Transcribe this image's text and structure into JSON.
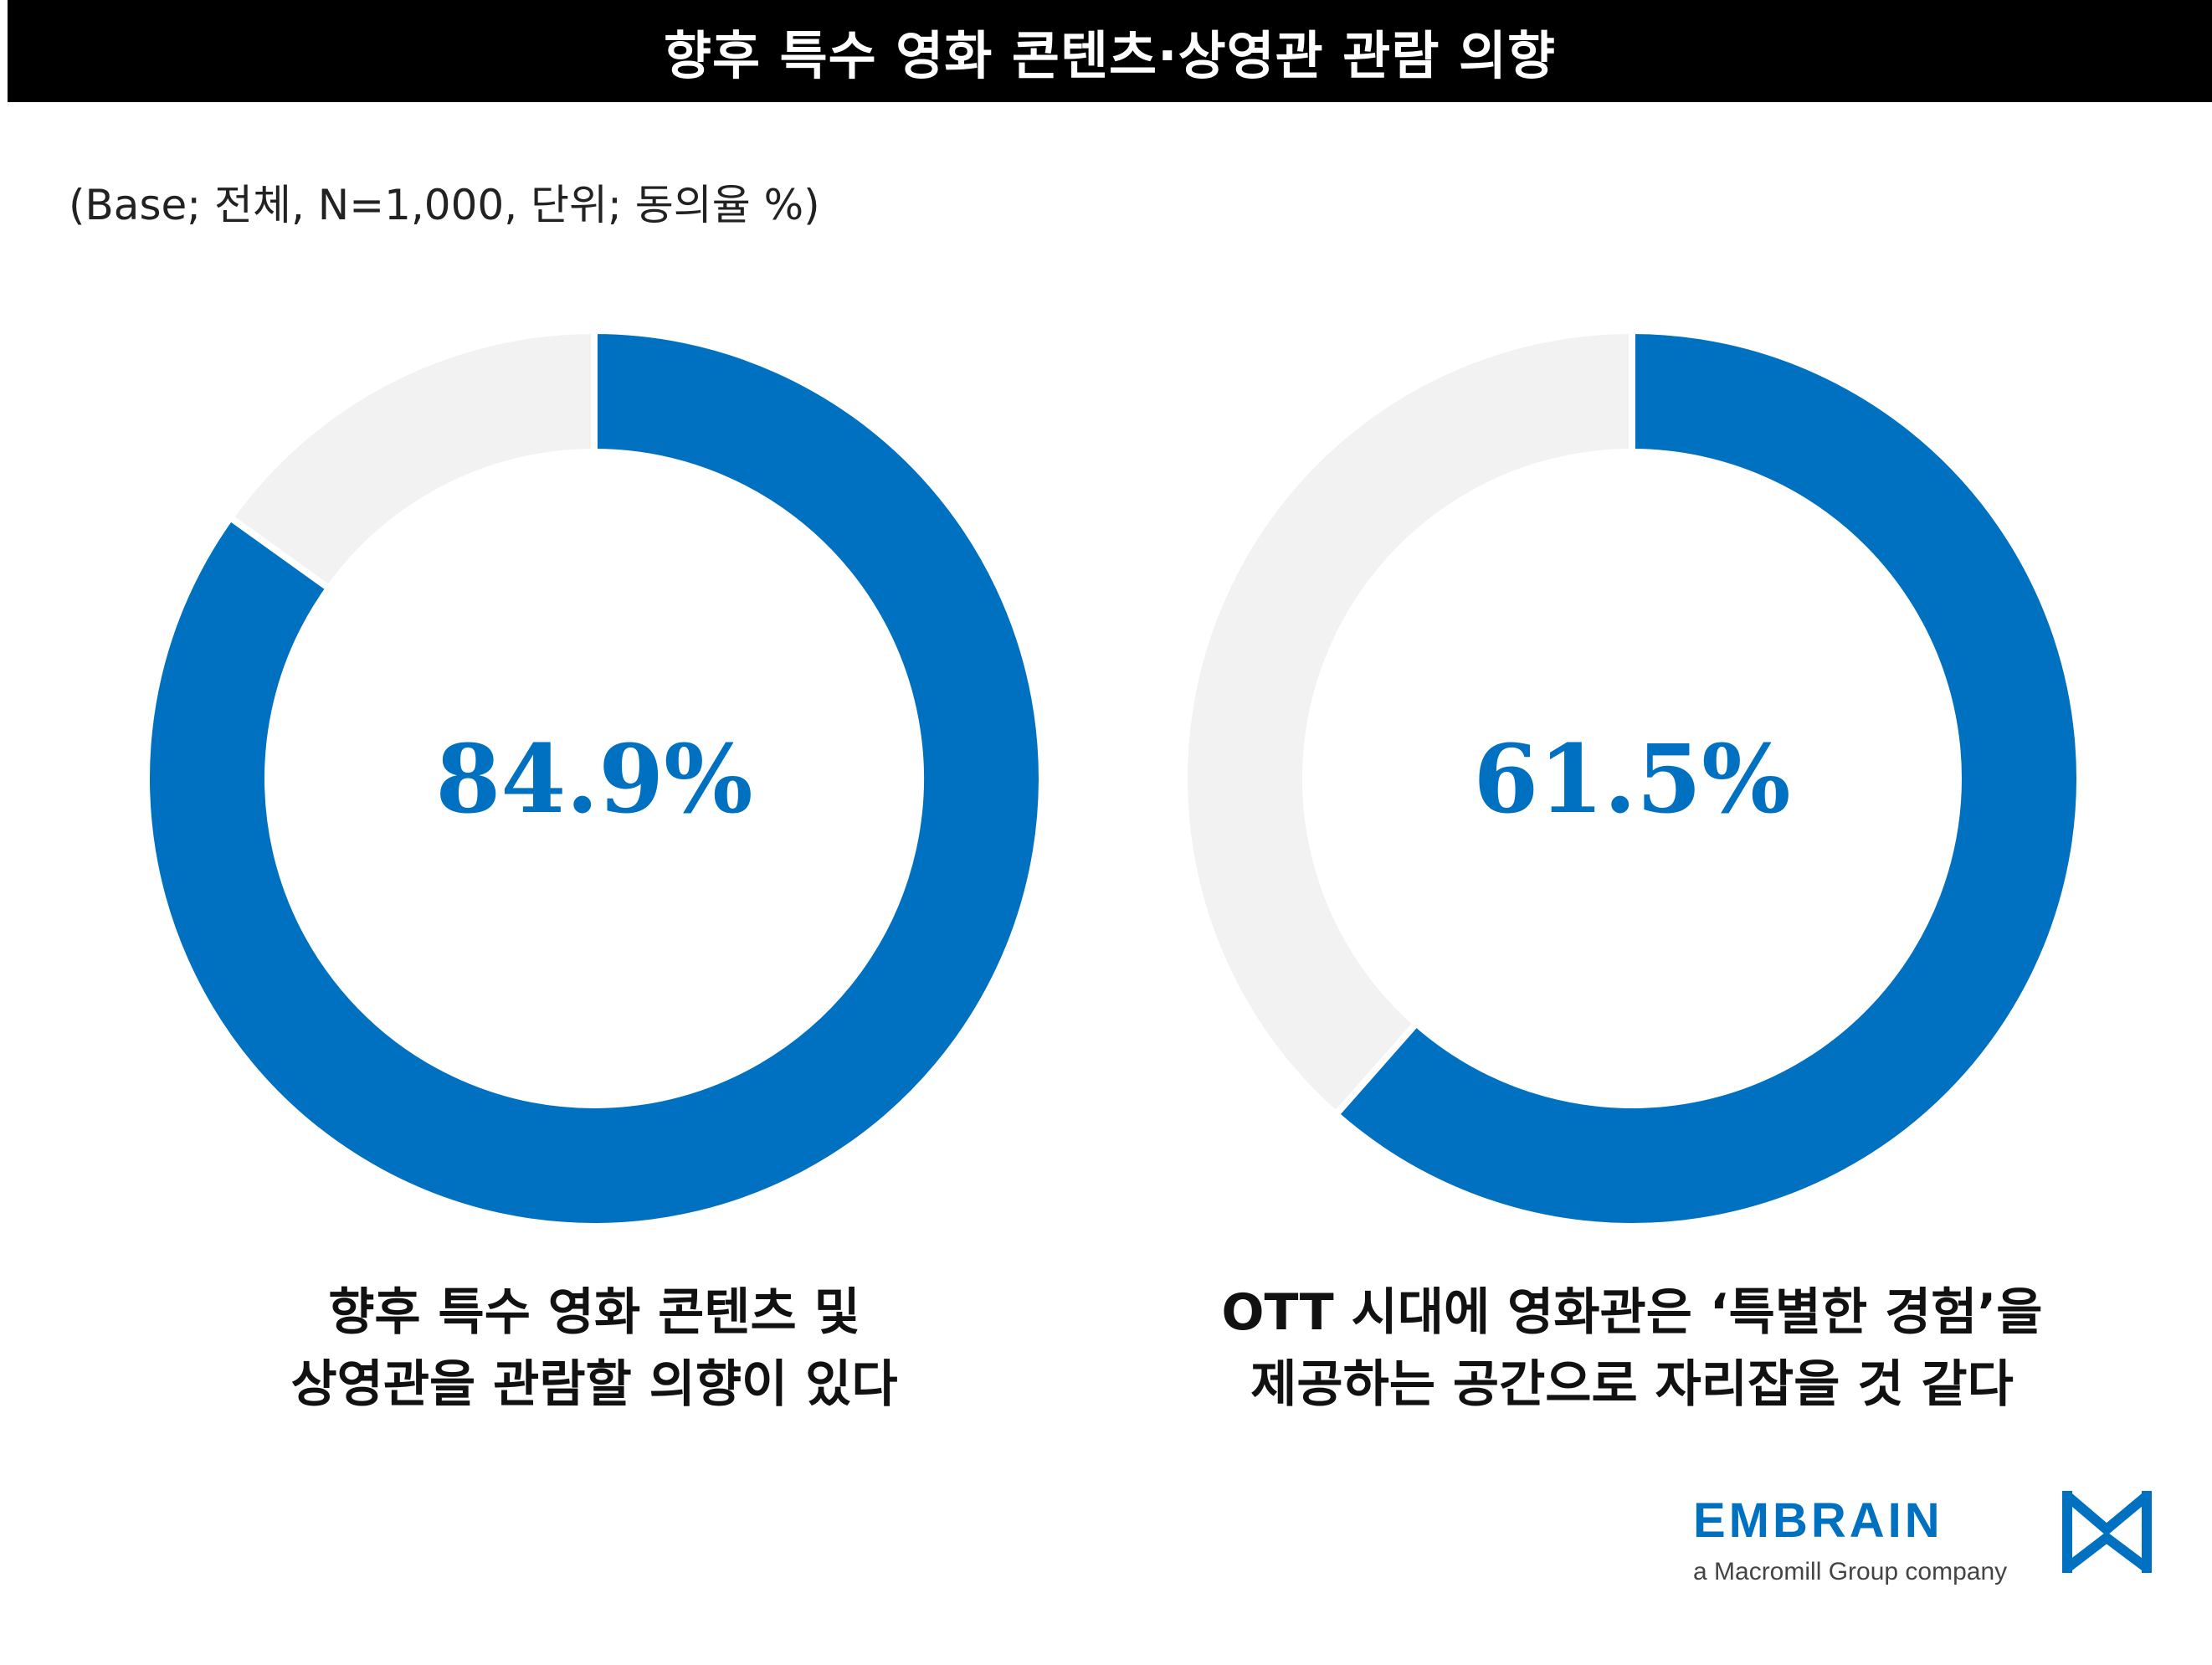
{
  "title": "향후 특수 영화 콘텐츠·상영관 관람 의향",
  "subtitle": "(Base; 전체, N=1,000, 단위; 동의율 %)",
  "colors": {
    "accent": "#0070C0",
    "remainder": "#F2F2F2",
    "title_bg": "#000000",
    "title_text": "#FFFFFF"
  },
  "chart_data": [
    {
      "type": "pie",
      "variant": "donut",
      "value": 84.9,
      "remainder": 15.1,
      "unit": "%",
      "center_label": "84.9%",
      "caption_lines": [
        "향후 특수 영화 콘텐츠 및",
        "상영관을 관람할 의향이 있다"
      ]
    },
    {
      "type": "pie",
      "variant": "donut",
      "value": 61.5,
      "remainder": 38.5,
      "unit": "%",
      "center_label": "61.5%",
      "caption_lines": [
        "OTT 시대에 영화관은 ‘특별한 경험’을",
        "제공하는 공간으로 자리잡을 것 같다"
      ]
    }
  ],
  "logo": {
    "wordmark": "EMBRAIN",
    "tagline": "a Macromill Group company",
    "mark_icon": "embrain-logo-icon"
  }
}
